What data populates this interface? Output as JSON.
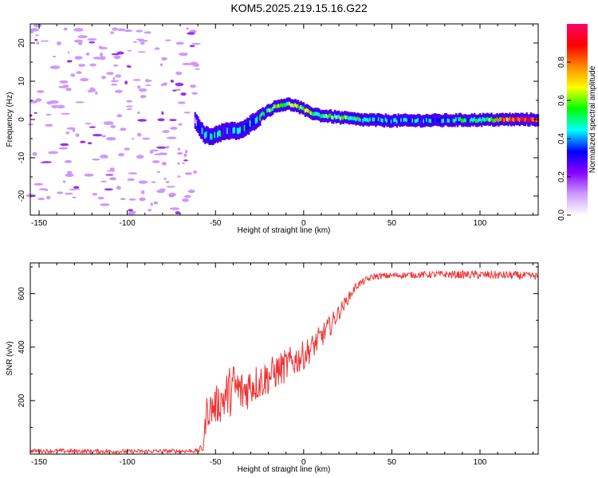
{
  "title": "KOM5.2025.219.15.16.G22",
  "chart_data": [
    {
      "type": "heatmap",
      "name": "spectrogram",
      "xlabel": "Height of straight line (km)",
      "ylabel": "Frequency (Hz)",
      "xlim": [
        -155,
        133
      ],
      "ylim": [
        -25,
        25
      ],
      "xticks": [
        -150,
        -100,
        -50,
        0,
        50,
        100
      ],
      "yticks": [
        -20,
        -10,
        0,
        10,
        20
      ],
      "colorbar": {
        "label": "Normalized spectral amplitude",
        "range": [
          0,
          1
        ],
        "ticks": [
          0.0,
          0.2,
          0.4,
          0.6,
          0.8
        ],
        "colors": [
          "#ffffff",
          "#cc99ff",
          "#8800ff",
          "#0000ff",
          "#00ffff",
          "#00ff00",
          "#ffff00",
          "#ff8800",
          "#ff0000",
          "#ff0066"
        ]
      },
      "trace": {
        "x": [
          -62,
          -57,
          -53,
          -48,
          -43,
          -38,
          -34,
          -30,
          -26,
          -22,
          -18,
          -14,
          -10,
          -6,
          -2,
          2,
          6,
          10,
          15,
          20,
          25,
          30,
          40,
          50,
          60,
          80,
          100,
          120,
          133
        ],
        "y": [
          0,
          -4,
          -4.5,
          -3.5,
          -3,
          -3,
          -2.5,
          -1,
          0.5,
          2,
          3,
          3.8,
          4,
          3.8,
          3,
          2,
          1.5,
          1,
          0.8,
          0.5,
          0.3,
          0,
          -0.2,
          -0.3,
          -0.3,
          -0.2,
          -0.1,
          0,
          0
        ],
        "amplitude": [
          0.12,
          0.35,
          0.4,
          0.35,
          0.3,
          0.3,
          0.35,
          0.3,
          0.4,
          0.45,
          0.5,
          0.55,
          0.5,
          0.55,
          0.55,
          0.5,
          0.45,
          0.45,
          0.5,
          0.55,
          0.5,
          0.4,
          0.35,
          0.35,
          0.3,
          0.35,
          0.45,
          0.8,
          0.8
        ]
      }
    },
    {
      "type": "line",
      "name": "snr",
      "xlabel": "Height of straight line (km)",
      "ylabel": "SNR (v/v)",
      "xlim": [
        -155,
        133
      ],
      "ylim": [
        0,
        715
      ],
      "xticks": [
        -150,
        -100,
        -50,
        0,
        50,
        100
      ],
      "yticks": [
        200,
        400,
        600
      ],
      "color": "#ee3333",
      "series": [
        {
          "name": "SNR",
          "x": [
            -155,
            -100,
            -60,
            -57,
            -55,
            -50,
            -45,
            -40,
            -35,
            -30,
            -25,
            -20,
            -15,
            -10,
            -5,
            0,
            5,
            10,
            15,
            20,
            25,
            30,
            35,
            40,
            60,
            80,
            100,
            120,
            133
          ],
          "values": [
            12,
            10,
            12,
            25,
            160,
            180,
            210,
            250,
            230,
            260,
            270,
            290,
            310,
            330,
            350,
            370,
            400,
            440,
            480,
            530,
            580,
            630,
            650,
            665,
            670,
            672,
            670,
            668,
            665
          ],
          "noise_amplitude": [
            8,
            8,
            8,
            20,
            60,
            70,
            90,
            100,
            90,
            80,
            70,
            70,
            65,
            65,
            60,
            55,
            50,
            45,
            40,
            30,
            20,
            15,
            12,
            12,
            12,
            14,
            16,
            16,
            14
          ]
        }
      ]
    }
  ]
}
